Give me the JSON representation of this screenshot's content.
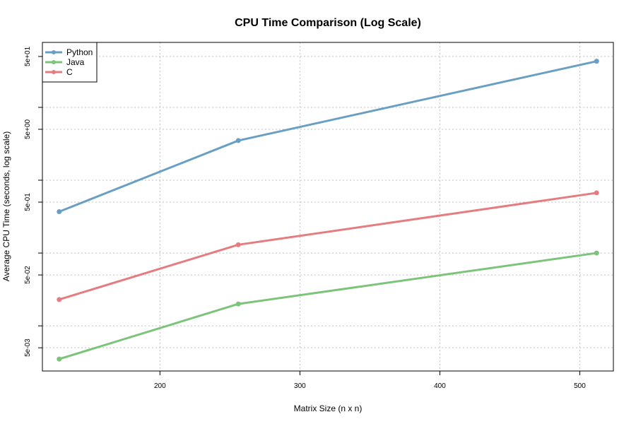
{
  "chart_data": {
    "type": "line",
    "title": "CPU Time Comparison (Log Scale)",
    "xlabel": "Matrix Size (n x n)",
    "ylabel": "Average CPU Time (seconds, log scale)",
    "x": [
      128,
      256,
      512
    ],
    "xlim": [
      116,
      524
    ],
    "ylim": [
      0.0024,
      78
    ],
    "y_scale": "log",
    "x_ticks": [
      200,
      300,
      400,
      500
    ],
    "y_ticks": [
      0.005,
      0.05,
      0.5,
      5,
      50
    ],
    "y_tick_labels": [
      "5e-03",
      "5e-02",
      "5e-01",
      "5e+00",
      "5e+01"
    ],
    "y_minor_ticks": [
      0.01,
      0.1,
      1,
      10
    ],
    "grid": true,
    "legend_position": "top-left",
    "series": [
      {
        "name": "Python",
        "color": "#6a9fc4",
        "values": [
          0.37,
          3.5,
          43
        ]
      },
      {
        "name": "Java",
        "color": "#7cc47a",
        "values": [
          0.0035,
          0.02,
          0.1
        ]
      },
      {
        "name": "C",
        "color": "#e57c7f",
        "values": [
          0.023,
          0.13,
          0.67
        ]
      }
    ]
  }
}
